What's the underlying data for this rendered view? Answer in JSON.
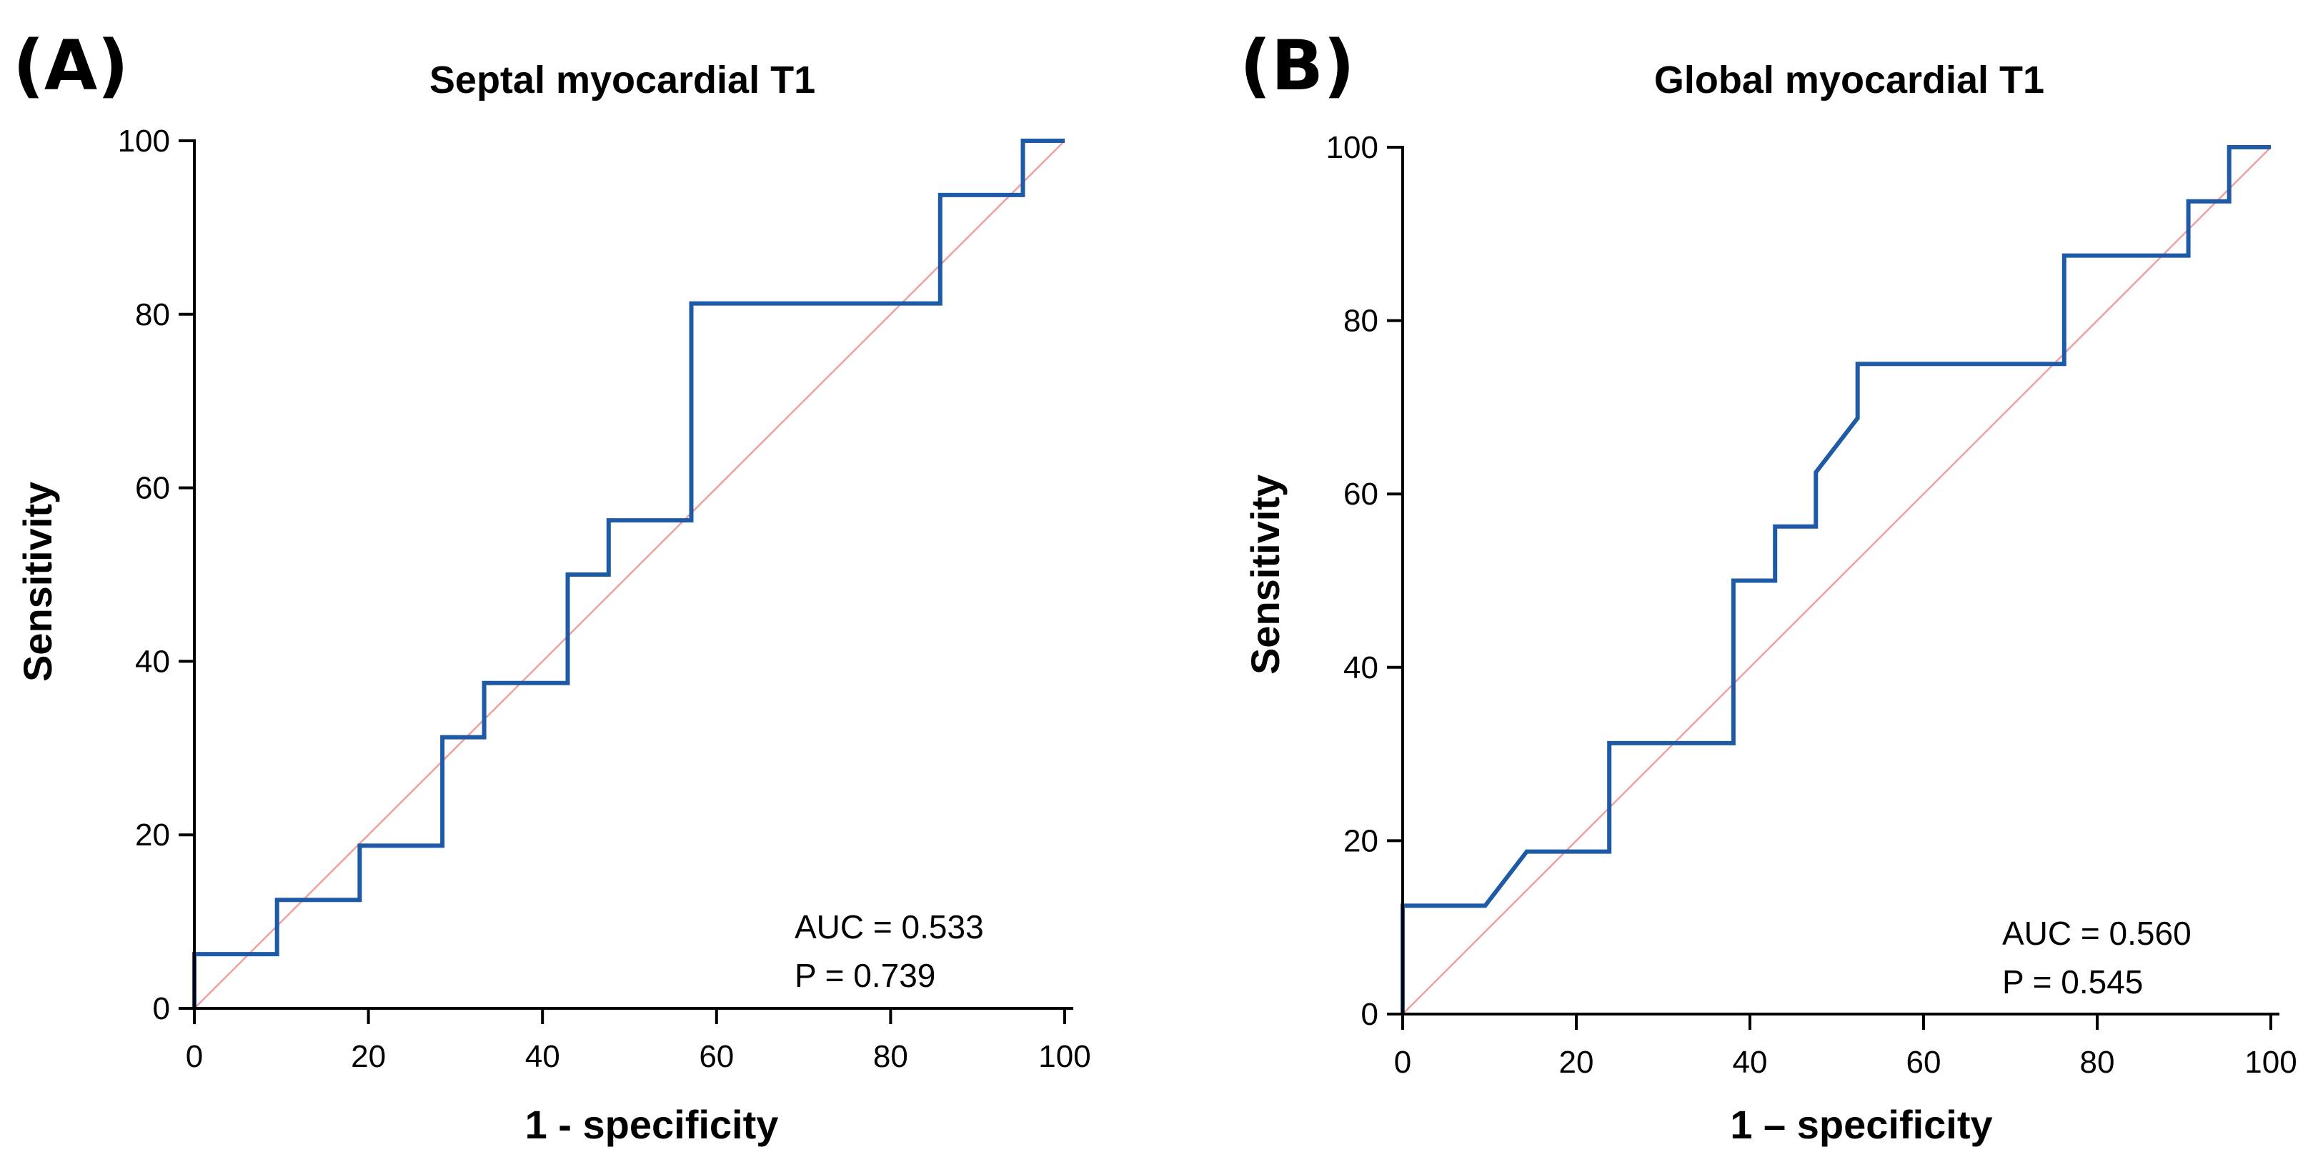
{
  "figure": {
    "panels": [
      {
        "letter": "(A)",
        "title": "Septal myocardial T1",
        "xlabel": "1 - specificity",
        "ylabel": "Sensitivity",
        "auc_text": "AUC = 0.533",
        "p_text": "P = 0.739"
      },
      {
        "letter": "(B)",
        "title": "Global myocardial T1",
        "xlabel": "1 – specificity",
        "ylabel": "Sensitivity",
        "auc_text": "AUC = 0.560",
        "p_text": "P = 0.545"
      }
    ]
  },
  "colors": {
    "roc_line": "#1f5aa6",
    "reference_line": "#f0a0a0",
    "axis": "#000000"
  },
  "chart_data": [
    {
      "type": "line",
      "title": "Septal myocardial T1",
      "xlabel": "1 - specificity",
      "ylabel": "Sensitivity",
      "xlim": [
        0,
        100
      ],
      "ylim": [
        0,
        100
      ],
      "xticks": [
        0,
        20,
        40,
        60,
        80,
        100
      ],
      "yticks": [
        0,
        20,
        40,
        60,
        80,
        100
      ],
      "grid": false,
      "series": [
        {
          "name": "ROC curve",
          "x": [
            0,
            0,
            9.5,
            9.5,
            19,
            19,
            28.5,
            28.5,
            33.3,
            33.3,
            42.9,
            42.9,
            47.6,
            47.6,
            57.1,
            57.1,
            85.7,
            85.7,
            95.2,
            95.2,
            100
          ],
          "y": [
            0,
            6.25,
            6.25,
            12.5,
            12.5,
            18.75,
            18.75,
            31.25,
            31.25,
            37.5,
            37.5,
            50,
            50,
            56.25,
            56.25,
            81.25,
            81.25,
            93.75,
            93.75,
            100,
            100
          ]
        },
        {
          "name": "Reference line",
          "x": [
            0,
            100
          ],
          "y": [
            0,
            100
          ]
        }
      ],
      "annotations": [
        "AUC = 0.533",
        "P = 0.739"
      ]
    },
    {
      "type": "line",
      "title": "Global myocardial T1",
      "xlabel": "1 – specificity",
      "ylabel": "Sensitivity",
      "xlim": [
        0,
        100
      ],
      "ylim": [
        0,
        100
      ],
      "xticks": [
        0,
        20,
        40,
        60,
        80,
        100
      ],
      "yticks": [
        0,
        20,
        40,
        60,
        80,
        100
      ],
      "grid": false,
      "series": [
        {
          "name": "ROC curve",
          "x": [
            0,
            0,
            9.5,
            14.3,
            23.8,
            23.8,
            38.1,
            38.1,
            42.9,
            42.9,
            47.6,
            47.6,
            52.4,
            52.4,
            76.2,
            76.2,
            90.5,
            90.5,
            95.2,
            95.2,
            100
          ],
          "y": [
            0,
            12.5,
            12.5,
            18.75,
            18.75,
            31.25,
            31.25,
            50,
            50,
            56.25,
            56.25,
            62.5,
            68.75,
            75,
            75,
            87.5,
            87.5,
            93.75,
            93.75,
            100,
            100
          ]
        },
        {
          "name": "Reference line",
          "x": [
            0,
            100
          ],
          "y": [
            0,
            100
          ]
        }
      ],
      "annotations": [
        "AUC = 0.560",
        "P = 0.545"
      ]
    }
  ]
}
